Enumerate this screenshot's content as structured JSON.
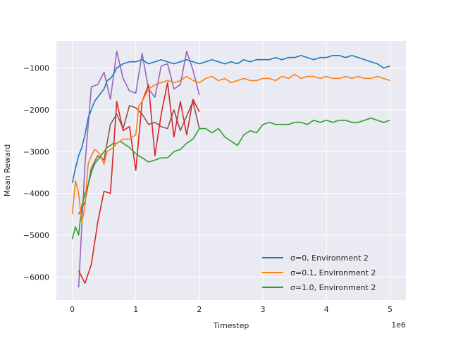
{
  "chart_data": {
    "type": "line",
    "title": "",
    "xlabel": "Timestep",
    "ylabel": "Mean Reward",
    "x_offset_label": "1e6",
    "xlim": [
      -0.25,
      5.25
    ],
    "ylim": [
      -6550,
      -350
    ],
    "xticks": [
      0,
      1,
      2,
      3,
      4,
      5
    ],
    "xtick_labels": [
      "0",
      "1",
      "2",
      "3",
      "4",
      "5"
    ],
    "yticks": [
      -6000,
      -5000,
      -4000,
      -3000,
      -2000,
      -1000
    ],
    "ytick_labels": [
      "−6000",
      "−5000",
      "−4000",
      "−3000",
      "−2000",
      "−1000"
    ],
    "grid": true,
    "legend_position": "lower-right",
    "series": [
      {
        "name": "σ=0, Environment 2",
        "color": "#1f77b4",
        "x": [
          0,
          0.05,
          0.1,
          0.15,
          0.2,
          0.25,
          0.3,
          0.35,
          0.4,
          0.45,
          0.5,
          0.55,
          0.6,
          0.65,
          0.7,
          0.75,
          0.8,
          0.9,
          1.0,
          1.1,
          1.2,
          1.3,
          1.4,
          1.5,
          1.6,
          1.7,
          1.8,
          1.9,
          2.0,
          2.1,
          2.2,
          2.3,
          2.4,
          2.5,
          2.6,
          2.7,
          2.8,
          2.9,
          3.0,
          3.1,
          3.2,
          3.3,
          3.4,
          3.5,
          3.6,
          3.7,
          3.8,
          3.9,
          4.0,
          4.1,
          4.2,
          4.3,
          4.4,
          4.5,
          4.6,
          4.7,
          4.8,
          4.9,
          5.0
        ],
        "y": [
          -3750,
          -3400,
          -3100,
          -2900,
          -2600,
          -2200,
          -2000,
          -1800,
          -1700,
          -1600,
          -1500,
          -1300,
          -1250,
          -1150,
          -1000,
          -950,
          -900,
          -850,
          -850,
          -800,
          -900,
          -850,
          -800,
          -850,
          -900,
          -850,
          -800,
          -850,
          -900,
          -850,
          -800,
          -850,
          -900,
          -850,
          -900,
          -800,
          -850,
          -800,
          -800,
          -800,
          -750,
          -800,
          -750,
          -750,
          -700,
          -750,
          -800,
          -750,
          -750,
          -700,
          -700,
          -750,
          -700,
          -750,
          -800,
          -850,
          -900,
          -1000,
          -950
        ]
      },
      {
        "name": "σ=0.1, Environment 2",
        "color": "#ff7f0e",
        "x": [
          0,
          0.05,
          0.1,
          0.15,
          0.2,
          0.25,
          0.3,
          0.35,
          0.4,
          0.45,
          0.5,
          0.55,
          0.6,
          0.65,
          0.7,
          0.75,
          0.8,
          0.9,
          1.0,
          1.05,
          1.1,
          1.2,
          1.3,
          1.4,
          1.5,
          1.6,
          1.7,
          1.8,
          1.9,
          2.0,
          2.1,
          2.2,
          2.3,
          2.4,
          2.5,
          2.6,
          2.7,
          2.8,
          2.9,
          3.0,
          3.1,
          3.2,
          3.3,
          3.4,
          3.5,
          3.6,
          3.7,
          3.8,
          3.9,
          4.0,
          4.1,
          4.2,
          4.3,
          4.4,
          4.5,
          4.6,
          4.7,
          4.8,
          4.9,
          5.0
        ],
        "y": [
          -4500,
          -3700,
          -4000,
          -4700,
          -4300,
          -3300,
          -3100,
          -2950,
          -3000,
          -3100,
          -3300,
          -3000,
          -2950,
          -2900,
          -2800,
          -2750,
          -2700,
          -2700,
          -2600,
          -1900,
          -1800,
          -1500,
          -1400,
          -1350,
          -1300,
          -1350,
          -1300,
          -1200,
          -1300,
          -1350,
          -1250,
          -1200,
          -1300,
          -1250,
          -1350,
          -1300,
          -1250,
          -1300,
          -1300,
          -1250,
          -1250,
          -1300,
          -1200,
          -1250,
          -1150,
          -1250,
          -1200,
          -1200,
          -1250,
          -1200,
          -1250,
          -1250,
          -1200,
          -1250,
          -1200,
          -1250,
          -1250,
          -1200,
          -1250,
          -1300
        ]
      },
      {
        "name": "σ=1.0, Environment 2",
        "color": "#2ca02c",
        "x": [
          0,
          0.05,
          0.1,
          0.15,
          0.2,
          0.25,
          0.3,
          0.35,
          0.4,
          0.45,
          0.5,
          0.55,
          0.6,
          0.65,
          0.7,
          0.75,
          0.8,
          0.9,
          1.0,
          1.1,
          1.2,
          1.3,
          1.4,
          1.5,
          1.6,
          1.7,
          1.8,
          1.9,
          2.0,
          2.1,
          2.2,
          2.3,
          2.4,
          2.5,
          2.6,
          2.7,
          2.8,
          2.9,
          3.0,
          3.1,
          3.2,
          3.3,
          3.4,
          3.5,
          3.6,
          3.7,
          3.8,
          3.9,
          4.0,
          4.1,
          4.2,
          4.3,
          4.4,
          4.5,
          4.6,
          4.7,
          4.8,
          4.9,
          5.0
        ],
        "y": [
          -5100,
          -4800,
          -5000,
          -4300,
          -4000,
          -3800,
          -3500,
          -3300,
          -3200,
          -3100,
          -3000,
          -2900,
          -2850,
          -2800,
          -2800,
          -2750,
          -2800,
          -2900,
          -3050,
          -3150,
          -3250,
          -3200,
          -3150,
          -3150,
          -3000,
          -2950,
          -2800,
          -2700,
          -2450,
          -2450,
          -2550,
          -2450,
          -2650,
          -2750,
          -2850,
          -2600,
          -2500,
          -2550,
          -2350,
          -2300,
          -2350,
          -2350,
          -2350,
          -2300,
          -2300,
          -2350,
          -2250,
          -2300,
          -2250,
          -2300,
          -2250,
          -2250,
          -2300,
          -2300,
          -2250,
          -2200,
          -2250,
          -2300,
          -2250
        ]
      },
      {
        "name": "",
        "color": "#d62728",
        "x": [
          0.1,
          0.2,
          0.3,
          0.4,
          0.5,
          0.6,
          0.7,
          0.8,
          0.9,
          1.0,
          1.1,
          1.2,
          1.3,
          1.4,
          1.5,
          1.6,
          1.7,
          1.8,
          1.9,
          2.0
        ],
        "y": [
          -5850,
          -6150,
          -5700,
          -4700,
          -3950,
          -4000,
          -1800,
          -2500,
          -2400,
          -3450,
          -1800,
          -1400,
          -3100,
          -2100,
          -1350,
          -2650,
          -1800,
          -2600,
          -1750,
          -2050
        ]
      },
      {
        "name": "",
        "color": "#9467bd",
        "x": [
          0.1,
          0.2,
          0.3,
          0.4,
          0.5,
          0.6,
          0.7,
          0.8,
          0.9,
          1.0,
          1.1,
          1.2,
          1.3,
          1.4,
          1.5,
          1.6,
          1.7,
          1.8,
          1.9,
          2.0
        ],
        "y": [
          -6250,
          -3300,
          -1450,
          -1400,
          -1100,
          -1750,
          -600,
          -1250,
          -1550,
          -1600,
          -650,
          -1500,
          -1700,
          -950,
          -900,
          -1500,
          -1400,
          -600,
          -1050,
          -1650
        ]
      },
      {
        "name": "",
        "color": "#8c564b",
        "x": [
          0.1,
          0.2,
          0.3,
          0.4,
          0.5,
          0.6,
          0.7,
          0.8,
          0.9,
          1.0,
          1.1,
          1.2,
          1.3,
          1.4,
          1.5,
          1.6,
          1.7,
          1.8,
          1.9,
          2.0
        ],
        "y": [
          -4500,
          -4200,
          -3400,
          -3100,
          -3200,
          -2350,
          -2100,
          -2450,
          -1900,
          -1950,
          -2100,
          -2350,
          -2300,
          -2400,
          -2450,
          -2000,
          -2500,
          -2150,
          -1800,
          -2450
        ]
      }
    ]
  }
}
